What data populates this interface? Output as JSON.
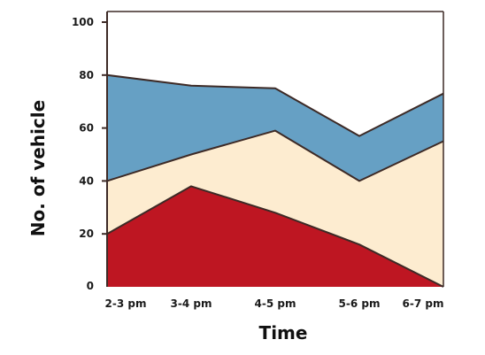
{
  "chart_data": {
    "type": "area",
    "stacked": true,
    "title": "",
    "xlabel": "Time",
    "ylabel": "No. of vehicle",
    "categories": [
      "2-3 pm",
      "3-4 pm",
      "4-5 pm",
      "5-6 pm",
      "6-7 pm"
    ],
    "ylim": [
      0,
      100
    ],
    "yticks": [
      0,
      20,
      40,
      60,
      80,
      100
    ],
    "grid": false,
    "legend": "none",
    "series": [
      {
        "values": [
          20,
          38,
          28,
          16,
          0
        ],
        "color": "#be1622"
      },
      {
        "values": [
          20,
          12,
          31,
          24,
          55
        ],
        "color": "#fdecd0"
      },
      {
        "values": [
          40,
          26,
          16,
          17,
          18
        ],
        "color": "#66a0c4"
      }
    ],
    "outline_color": "#3d2a26"
  }
}
